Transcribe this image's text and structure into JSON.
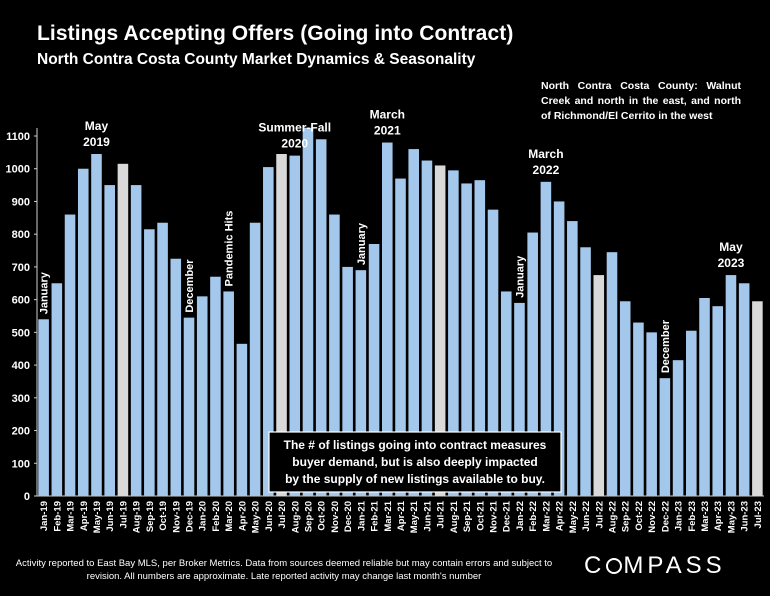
{
  "title": "Listings Accepting Offers (Going into Contract)",
  "subtitle": "North Contra Costa County Market Dynamics & Seasonality",
  "region_note": "North Contra Costa County: Walnut Creek and north in the east, and north of Richmond/El Cerrito in the west",
  "footnote": "Activity reported to East Bay MLS, per Broker Metrics. Data from sources deemed reliable but may contain errors and subject to revision. All numbers are approximate. Late reported activity may change last month's number",
  "brand": {
    "pre": "C",
    "post": "MPASS"
  },
  "colors": {
    "bar": "#a4c8ec",
    "highlight_bar": "#d9d9d9",
    "background": "#000000",
    "text": "#ffffff"
  },
  "chart_data": {
    "type": "bar",
    "title": "Listings Accepting Offers (Going into Contract)",
    "ylim": [
      0,
      1100
    ],
    "yticks": [
      0,
      100,
      200,
      300,
      400,
      500,
      600,
      700,
      800,
      900,
      1000,
      1100
    ],
    "grid": false,
    "categories": [
      "Jan-19",
      "Feb-19",
      "Mar-19",
      "Apr-19",
      "May-19",
      "Jun-19",
      "Jul-19",
      "Aug-19",
      "Sep-19",
      "Oct-19",
      "Nov-19",
      "Dec-19",
      "Jan-20",
      "Feb-20",
      "Mar-20",
      "Apr-20",
      "May-20",
      "Jun-20",
      "Jul-20",
      "Aug-20",
      "Sep-20",
      "Oct-20",
      "Nov-20",
      "Dec-20",
      "Jan-21",
      "Feb-21",
      "Mar-21",
      "Apr-21",
      "May-21",
      "Jun-21",
      "Jul-21",
      "Aug-21",
      "Sep-21",
      "Oct-21",
      "Nov-21",
      "Dec-21",
      "Jan-22",
      "Feb-22",
      "Mar-22",
      "Apr-22",
      "May-22",
      "Jun-22",
      "Jul-22",
      "Aug-22",
      "Sep-22",
      "Oct-22",
      "Nov-22",
      "Dec-22",
      "Jan-23",
      "Feb-23",
      "Mar-23",
      "Apr-23",
      "May-23",
      "Jun-23",
      "Jul-23"
    ],
    "values": [
      540,
      650,
      860,
      1000,
      1045,
      950,
      1015,
      950,
      815,
      835,
      725,
      545,
      610,
      670,
      625,
      465,
      835,
      1005,
      1045,
      1040,
      1125,
      1090,
      860,
      700,
      690,
      770,
      1080,
      970,
      1060,
      1025,
      1010,
      995,
      955,
      965,
      875,
      625,
      590,
      805,
      960,
      900,
      840,
      760,
      675,
      745,
      595,
      530,
      500,
      360,
      415,
      505,
      605,
      580,
      675,
      650,
      595
    ],
    "highlighted": [
      "Jul-19",
      "Jul-20",
      "Jul-21",
      "Jul-22",
      "Jul-23"
    ],
    "annotations": [
      {
        "text": "January",
        "category": "Jan-19",
        "orientation": "vertical"
      },
      {
        "text": "May\n2019",
        "category": "May-19",
        "orientation": "horizontal"
      },
      {
        "text": "December",
        "category": "Dec-19",
        "orientation": "vertical"
      },
      {
        "text": "Pandemic Hits",
        "category": "Mar-20",
        "orientation": "vertical"
      },
      {
        "text": "Summer-Fall\n2020",
        "category": "Aug-20",
        "orientation": "horizontal"
      },
      {
        "text": "January",
        "category": "Jan-21",
        "orientation": "vertical"
      },
      {
        "text": "March\n2021",
        "category": "Mar-21",
        "orientation": "horizontal"
      },
      {
        "text": "January",
        "category": "Jan-22",
        "orientation": "vertical"
      },
      {
        "text": "March\n2022",
        "category": "Mar-22",
        "orientation": "horizontal"
      },
      {
        "text": "December",
        "category": "Dec-22",
        "orientation": "vertical"
      },
      {
        "text": "May\n2023",
        "category": "May-23",
        "orientation": "horizontal"
      }
    ],
    "callout": "The # of listings going into contract measures buyer demand, but is also deeply impacted by the supply of new listings available to buy."
  }
}
